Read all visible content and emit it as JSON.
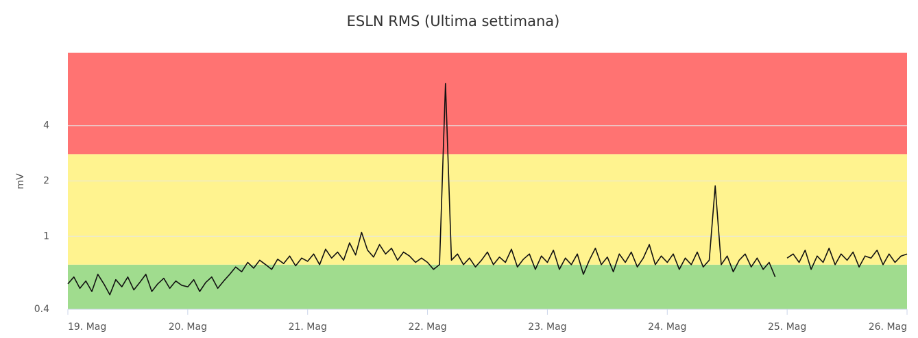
{
  "chart_data": {
    "type": "line",
    "title": "ESLN RMS (Ultima settimana)",
    "y_label": "mV",
    "log_y": true,
    "grid": true,
    "xlim": [
      0,
      7
    ],
    "xticks": [
      {
        "value": 0,
        "label": "19. Mag"
      },
      {
        "value": 1,
        "label": "20. Mag"
      },
      {
        "value": 2,
        "label": "21. Mag"
      },
      {
        "value": 3,
        "label": "22. Mag"
      },
      {
        "value": 4,
        "label": "23. Mag"
      },
      {
        "value": 5,
        "label": "24. Mag"
      },
      {
        "value": 6,
        "label": "25. Mag"
      },
      {
        "value": 7,
        "label": "26. Mag"
      }
    ],
    "ylim": [
      0.4,
      10
    ],
    "yticks": [
      0.4,
      1,
      2,
      4
    ],
    "bands": [
      {
        "from": 0.4,
        "to": 0.7,
        "color": "#a0dc8e"
      },
      {
        "from": 0.7,
        "to": 2.8,
        "color": "#fff38f"
      },
      {
        "from": 2.8,
        "to": 10,
        "color": "#ff7372"
      }
    ],
    "series": [
      {
        "name": "ESLN RMS",
        "color": "#111111",
        "x": [
          0,
          0.05,
          0.1,
          0.15,
          0.2,
          0.25,
          0.3,
          0.35,
          0.4,
          0.45,
          0.5,
          0.55,
          0.6,
          0.65,
          0.7,
          0.75,
          0.8,
          0.85,
          0.9,
          0.95,
          1,
          1.05,
          1.1,
          1.15,
          1.2,
          1.25,
          1.3,
          1.35,
          1.4,
          1.45,
          1.5,
          1.55,
          1.6,
          1.65,
          1.7,
          1.75,
          1.8,
          1.85,
          1.9,
          1.95,
          2,
          2.05,
          2.1,
          2.15,
          2.2,
          2.25,
          2.3,
          2.35,
          2.4,
          2.45,
          2.5,
          2.55,
          2.6,
          2.65,
          2.7,
          2.75,
          2.8,
          2.85,
          2.9,
          2.95,
          3,
          3.05,
          3.1,
          3.15,
          3.2,
          3.25,
          3.3,
          3.35,
          3.4,
          3.45,
          3.5,
          3.55,
          3.6,
          3.65,
          3.7,
          3.75,
          3.8,
          3.85,
          3.9,
          3.95,
          4,
          4.05,
          4.1,
          4.15,
          4.2,
          4.25,
          4.3,
          4.35,
          4.4,
          4.45,
          4.5,
          4.55,
          4.6,
          4.65,
          4.7,
          4.75,
          4.8,
          4.85,
          4.9,
          4.95,
          5,
          5.05,
          5.1,
          5.15,
          5.2,
          5.25,
          5.3,
          5.35,
          5.4,
          5.45,
          5.5,
          5.55,
          5.6,
          5.65,
          5.7,
          5.75,
          5.8,
          5.85,
          5.9,
          5.95,
          6,
          6.05,
          6.1,
          6.15,
          6.2,
          6.25,
          6.3,
          6.35,
          6.4,
          6.45,
          6.5,
          6.55,
          6.6,
          6.65,
          6.7,
          6.75,
          6.8,
          6.85,
          6.9,
          6.95,
          7
        ],
        "values": [
          0.55,
          0.6,
          0.52,
          0.57,
          0.5,
          0.62,
          0.55,
          0.48,
          0.58,
          0.53,
          0.6,
          0.51,
          0.56,
          0.62,
          0.5,
          0.55,
          0.59,
          0.52,
          0.57,
          0.54,
          0.53,
          0.58,
          0.5,
          0.56,
          0.6,
          0.52,
          0.57,
          0.62,
          0.68,
          0.64,
          0.72,
          0.67,
          0.74,
          0.7,
          0.66,
          0.75,
          0.71,
          0.78,
          0.69,
          0.76,
          0.73,
          0.8,
          0.7,
          0.85,
          0.76,
          0.82,
          0.74,
          0.92,
          0.79,
          1.05,
          0.84,
          0.77,
          0.9,
          0.8,
          0.86,
          0.74,
          0.82,
          0.78,
          0.72,
          0.76,
          0.72,
          0.66,
          0.7,
          6.8,
          0.74,
          0.8,
          0.7,
          0.76,
          0.68,
          0.74,
          0.82,
          0.7,
          0.77,
          0.72,
          0.85,
          0.68,
          0.75,
          0.8,
          0.66,
          0.78,
          0.72,
          0.84,
          0.66,
          0.76,
          0.7,
          0.8,
          0.62,
          0.74,
          0.86,
          0.7,
          0.77,
          0.64,
          0.8,
          0.72,
          0.82,
          0.68,
          0.76,
          0.9,
          0.7,
          0.78,
          0.72,
          0.8,
          0.66,
          0.76,
          0.7,
          0.82,
          0.68,
          0.74,
          1.88,
          0.7,
          0.78,
          0.64,
          0.74,
          0.8,
          0.68,
          0.76,
          0.66,
          0.72,
          0.6,
          null,
          0.76,
          0.8,
          0.72,
          0.84,
          0.66,
          0.78,
          0.72,
          0.86,
          0.7,
          0.8,
          0.74,
          0.82,
          0.68,
          0.78,
          0.76,
          0.84,
          0.7,
          0.8,
          0.72,
          0.78,
          0.8
        ]
      }
    ]
  }
}
